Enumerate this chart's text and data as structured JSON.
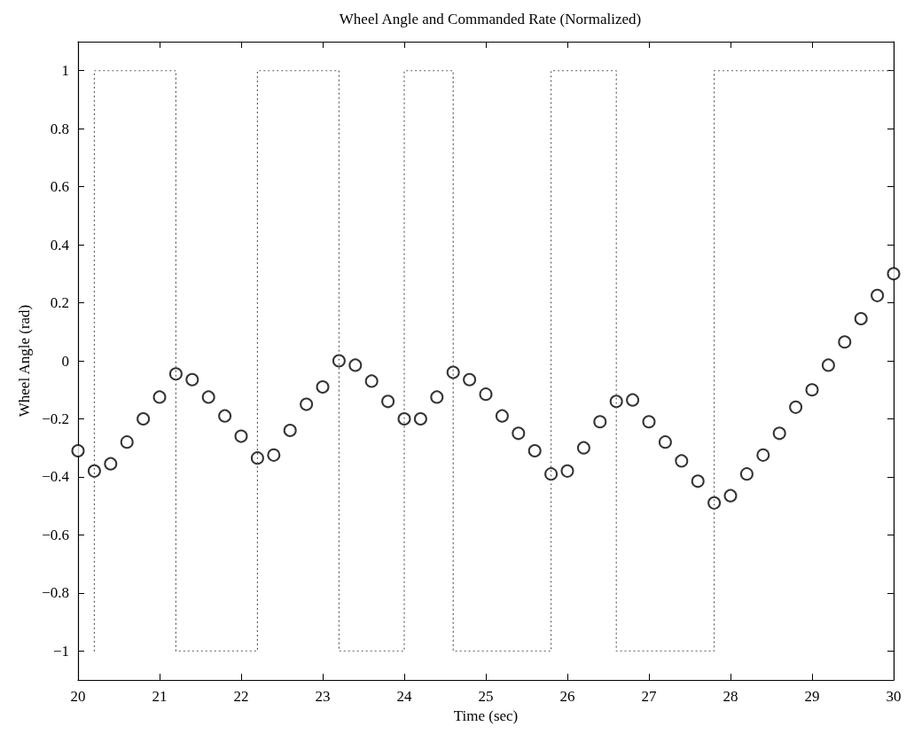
{
  "chart_data": {
    "type": "scatter",
    "title": "Wheel Angle and Commanded Rate (Normalized)",
    "xlabel": "Time (sec)",
    "ylabel": "Wheel Angle (rad)",
    "xlim": [
      20,
      30
    ],
    "xticks": [
      20,
      21,
      22,
      23,
      24,
      25,
      26,
      27,
      28,
      29,
      30
    ],
    "ylim": [
      -1.1,
      1.1
    ],
    "yticks": [
      -1,
      -0.8,
      -0.6,
      -0.4,
      -0.2,
      0,
      0.2,
      0.4,
      0.6,
      0.8,
      1
    ],
    "grid": false,
    "series": [
      {
        "marker": "circle",
        "color": "#000000",
        "x": [
          20,
          20.2,
          20.4,
          20.6,
          20.8,
          21,
          21.2,
          21.4,
          21.6,
          21.8,
          22,
          22.2,
          22.4,
          22.6,
          22.8,
          23,
          23.2,
          23.4,
          23.6,
          23.8,
          24,
          24.2,
          24.4,
          24.6,
          24.8,
          25,
          25.2,
          25.4,
          25.6,
          25.8,
          26,
          26.2,
          26.4,
          26.6,
          26.8,
          27,
          27.2,
          27.4,
          27.6,
          27.8,
          28,
          28.2,
          28.4,
          28.6,
          28.8,
          29,
          29.2,
          29.4,
          29.6,
          29.8,
          30
        ],
        "values": [
          -0.31,
          -0.38,
          -0.355,
          -0.28,
          -0.2,
          -0.125,
          -0.045,
          -0.065,
          -0.125,
          -0.19,
          -0.26,
          -0.335,
          -0.325,
          -0.24,
          -0.15,
          -0.09,
          0,
          -0.015,
          -0.07,
          -0.14,
          -0.2,
          -0.2,
          -0.125,
          -0.04,
          -0.065,
          -0.115,
          -0.19,
          -0.25,
          -0.31,
          -0.39,
          -0.38,
          -0.3,
          -0.21,
          -0.14,
          -0.135,
          -0.21,
          -0.28,
          -0.345,
          -0.415,
          -0.49,
          -0.465,
          -0.39,
          -0.325,
          -0.25,
          -0.16,
          -0.1,
          -0.015,
          0.065,
          0.145,
          0.225,
          0.3
        ]
      },
      {
        "type": "line",
        "marker": "none",
        "line_style": "dotted",
        "color": "#555555",
        "x": [
          20.2,
          20.2,
          21.2,
          21.2,
          22.2,
          22.2,
          23.2,
          23.2,
          24,
          24,
          24.6,
          24.6,
          25.8,
          25.8,
          26.6,
          26.6,
          27.8,
          27.8,
          30
        ],
        "values": [
          -1,
          1,
          1,
          -1,
          -1,
          1,
          1,
          -1,
          -1,
          1,
          1,
          -1,
          -1,
          1,
          1,
          -1,
          -1,
          1,
          1
        ]
      }
    ]
  }
}
